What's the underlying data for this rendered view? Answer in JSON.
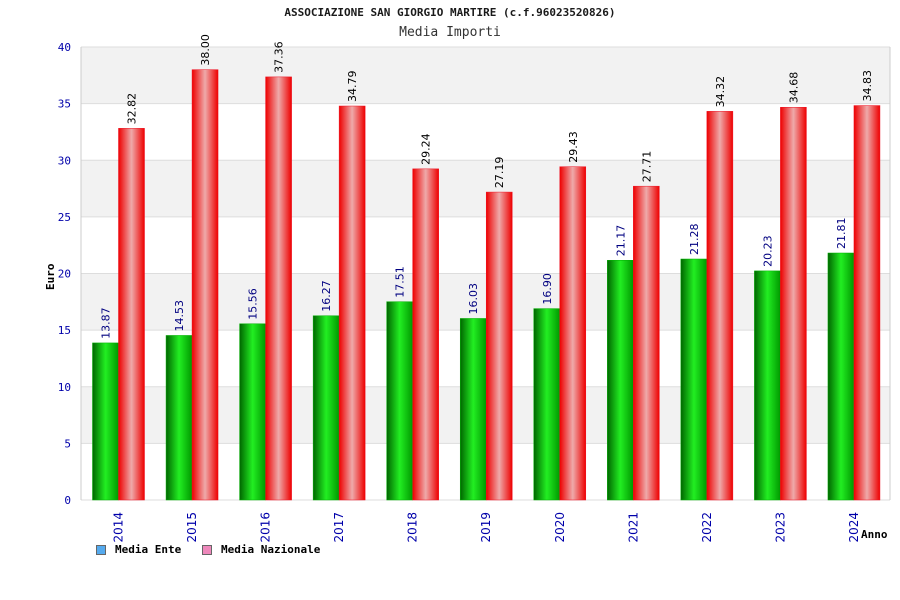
{
  "title": "ASSOCIAZIONE SAN GIORGIO MARTIRE (c.f.96023520826)",
  "subtitle": "Media Importi",
  "colors": {
    "ente": "#00b000",
    "nazionale": "#ee1122",
    "legend_ente": "#55aaee",
    "legend_nazionale": "#ee88bb",
    "axis_text": "#0000aa",
    "value_text_ente": "#000080",
    "value_text_nazionale": "#000000",
    "band": "#f2f2f2",
    "grid": "#dddddd"
  },
  "chart_data": {
    "type": "bar",
    "xlabel": "Anno",
    "ylabel": "Euro",
    "ylim": [
      0,
      40
    ],
    "y_ticks": [
      0,
      5,
      10,
      15,
      20,
      25,
      30,
      35,
      40
    ],
    "grid": true,
    "legend": "bottom-left",
    "categories": [
      "2014",
      "2015",
      "2016",
      "2017",
      "2018",
      "2019",
      "2020",
      "2021",
      "2022",
      "2023",
      "2024"
    ],
    "series": [
      {
        "name": "Media Ente",
        "values": [
          13.87,
          14.53,
          15.56,
          16.27,
          17.51,
          16.03,
          16.9,
          21.17,
          21.28,
          20.23,
          21.81
        ],
        "labels": [
          "13.87",
          "14.53",
          "15.56",
          "16.27",
          "17.51",
          "16.03",
          "16.90",
          "21.17",
          "21.28",
          "20.23",
          "21.81"
        ]
      },
      {
        "name": "Media Nazionale",
        "values": [
          32.82,
          38.0,
          37.36,
          34.79,
          29.24,
          27.19,
          29.43,
          27.71,
          34.32,
          34.68,
          34.83
        ],
        "labels": [
          "32.82",
          "38.00",
          "37.36",
          "34.79",
          "29.24",
          "27.19",
          "29.43",
          "27.71",
          "34.32",
          "34.68",
          "34.83"
        ]
      }
    ]
  }
}
